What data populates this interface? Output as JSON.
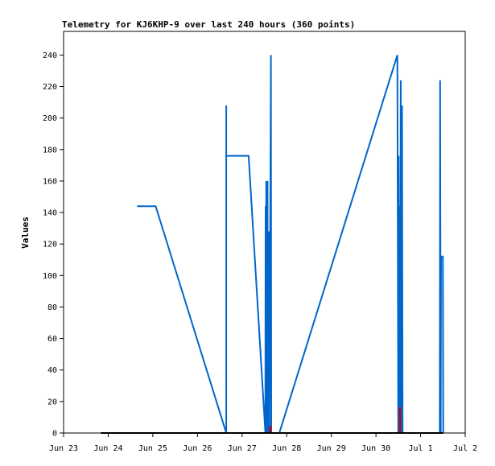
{
  "chart_data": {
    "type": "line",
    "title": "Telemetry for KJ6KHP-9 over last 240 hours (360 points)",
    "xlabel": "",
    "ylabel": "Values",
    "xlim": [
      "2013-06-23",
      "2013-07-02"
    ],
    "ylim": [
      0,
      255
    ],
    "y_ticks": [
      0,
      20,
      40,
      60,
      80,
      100,
      120,
      140,
      160,
      180,
      200,
      220,
      240
    ],
    "x_ticks": [
      {
        "date": "2013-06-23",
        "label": "Jun 23"
      },
      {
        "date": "2013-06-24",
        "label": "Jun 24"
      },
      {
        "date": "2013-06-25",
        "label": "Jun 25"
      },
      {
        "date": "2013-06-26",
        "label": "Jun 26"
      },
      {
        "date": "2013-06-27",
        "label": "Jun 27"
      },
      {
        "date": "2013-06-28",
        "label": "Jun 28"
      },
      {
        "date": "2013-06-29",
        "label": "Jun 29"
      },
      {
        "date": "2013-06-30",
        "label": "Jun 30"
      },
      {
        "date": "2013-07-01",
        "label": "Jul 1"
      },
      {
        "date": "2013-07-02",
        "label": "Jul 2"
      }
    ],
    "grid": false,
    "legend": "none",
    "series": [
      {
        "color": "#0066cc",
        "points": [
          [
            "2013-06-24 15:30",
            144
          ],
          [
            "2013-06-25 01:30",
            144
          ],
          [
            "2013-06-26 15:30",
            0
          ],
          [
            "2013-06-26 15:30",
            208
          ],
          [
            "2013-06-26 15:30",
            176
          ],
          [
            "2013-06-27 03:30",
            176
          ],
          [
            "2013-06-27 12:30",
            0
          ],
          [
            "2013-06-27 12:40",
            144
          ],
          [
            "2013-06-27 12:50",
            0
          ],
          [
            "2013-06-27 13:00",
            160
          ],
          [
            "2013-06-27 13:10",
            0
          ],
          [
            "2013-06-27 13:20",
            128
          ],
          [
            "2013-06-27 13:30",
            0
          ],
          [
            "2013-06-27 13:40",
            160
          ],
          [
            "2013-06-27 13:50",
            0
          ],
          [
            "2013-06-27 14:00",
            128
          ],
          [
            "2013-06-27 14:10",
            0
          ],
          [
            "2013-06-27 14:30",
            128
          ],
          [
            "2013-06-27 14:40",
            0
          ],
          [
            "2013-06-27 15:30",
            240
          ],
          [
            "2013-06-27 15:40",
            0
          ],
          [
            "2013-06-27 20:00",
            0
          ],
          [
            "2013-06-30 11:30",
            240
          ],
          [
            "2013-06-30 12:00",
            0
          ],
          [
            "2013-06-30 12:10",
            176
          ],
          [
            "2013-06-30 12:30",
            0
          ],
          [
            "2013-06-30 12:50",
            144
          ],
          [
            "2013-06-30 13:00",
            0
          ],
          [
            "2013-06-30 13:20",
            224
          ],
          [
            "2013-06-30 13:40",
            0
          ],
          [
            "2013-06-30 14:00",
            208
          ],
          [
            "2013-06-30 14:20",
            0
          ],
          [
            "2013-07-01 10:20",
            0
          ],
          [
            "2013-07-01 10:30",
            224
          ],
          [
            "2013-07-01 10:50",
            0
          ],
          [
            "2013-07-01 11:00",
            112
          ],
          [
            "2013-07-01 12:00",
            112
          ],
          [
            "2013-07-01 12:10",
            0
          ]
        ]
      },
      {
        "color": "#cc0000",
        "points": [
          [
            "2013-06-27 15:00",
            0
          ],
          [
            "2013-06-27 15:00",
            4
          ],
          [
            "2013-06-27 15:20",
            4
          ],
          [
            "2013-06-27 15:20",
            0
          ],
          [
            "2013-06-30 12:50",
            0
          ],
          [
            "2013-06-30 12:50",
            16
          ],
          [
            "2013-06-30 13:00",
            16
          ],
          [
            "2013-06-30 13:00",
            0
          ]
        ]
      },
      {
        "color": "#000000",
        "points": [
          [
            "2013-06-23 20:00",
            0
          ],
          [
            "2013-07-01 12:10",
            0
          ]
        ]
      }
    ]
  }
}
